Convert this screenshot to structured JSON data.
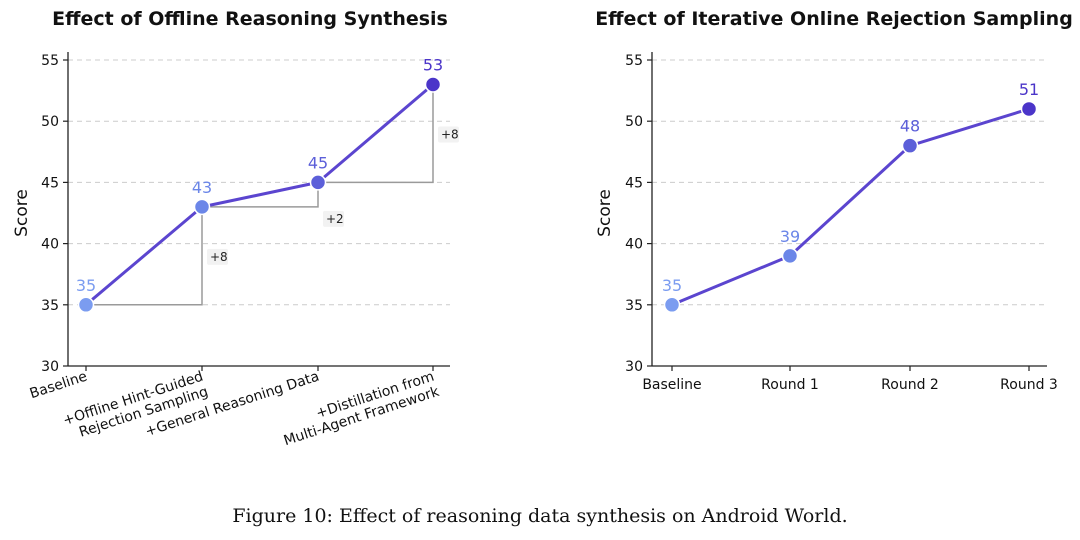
{
  "caption": "Figure 10: Effect of reasoning data synthesis on Android World.",
  "chart_data": [
    {
      "type": "line",
      "title": "Effect of Offline Reasoning Synthesis",
      "xlabel": "",
      "ylabel": "Score",
      "ylim": [
        30,
        55
      ],
      "yticks": [
        30,
        35,
        40,
        45,
        50,
        55
      ],
      "grid": "horizontal-dashed",
      "categories": [
        "Baseline",
        "+Offline Hint-Guided\nRejection Sampling",
        "+General Reasoning Data",
        "+Distillation from\nMulti-Agent Framework"
      ],
      "values": [
        35,
        43,
        45,
        53
      ],
      "point_colors": [
        "#7b9cf0",
        "#6b86e8",
        "#5c5fd9",
        "#4b35c9"
      ],
      "line_color": "#5b45cf",
      "deltas": [
        "+8",
        "+2",
        "+8"
      ]
    },
    {
      "type": "line",
      "title": "Effect of Iterative Online Rejection Sampling",
      "xlabel": "",
      "ylabel": "Score",
      "ylim": [
        30,
        55
      ],
      "yticks": [
        30,
        35,
        40,
        45,
        50,
        55
      ],
      "grid": "horizontal-dashed",
      "categories": [
        "Baseline",
        "Round 1",
        "Round 2",
        "Round 3"
      ],
      "values": [
        35,
        39,
        48,
        51
      ],
      "point_colors": [
        "#7b9cf0",
        "#6b86e8",
        "#5c5fd9",
        "#4b35c9"
      ],
      "line_color": "#5b45cf"
    }
  ]
}
